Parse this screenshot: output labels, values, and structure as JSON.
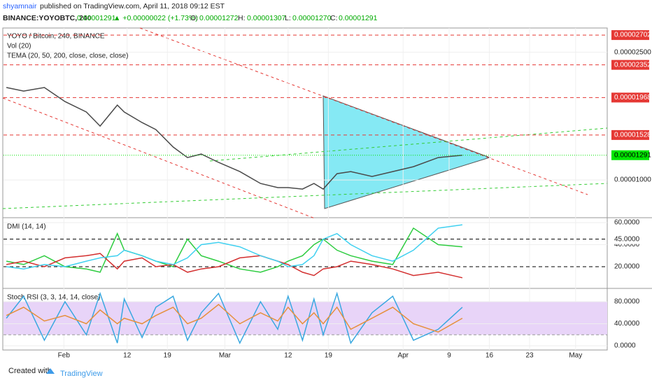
{
  "header": {
    "author": "shyamnair",
    "published": "published on TradingView.com, April 11, 2018 09:12 EST",
    "symbol": "BINANCE:YOYOBTC, 240",
    "price": "0.00001291",
    "change": "▲ +0.00000022 (+1.73%)",
    "open_label": "O:",
    "open": "0.00001272",
    "high_label": "H:",
    "high": "0.00001307",
    "low_label": "L:",
    "low": "0.00001270",
    "close_label": "C:",
    "close": "0.00001291"
  },
  "footer": {
    "created": "Created with",
    "brand": "TradingView"
  },
  "chart_data": [
    {
      "type": "line",
      "title": "YOYO / Bitcoin, 240, BINANCE",
      "legend": [
        "Vol (20)",
        "TEMA (20, 50, 200, close, close, close)"
      ],
      "x": [
        22,
        25,
        28.6,
        32.2,
        35.9,
        38.3,
        41.3,
        42.5,
        45.6,
        48,
        51,
        53.5,
        55.9,
        58.9,
        62.6,
        66.2,
        69.2,
        71,
        73.5,
        75.5,
        77.1,
        79.5,
        81.9,
        85.6,
        89.2,
        92.8,
        97.1,
        101.3
      ],
      "xlim": [
        21.5,
        126.5
      ],
      "xticks": [
        {
          "value": 32,
          "label": "Feb"
        },
        {
          "value": 43,
          "label": "12"
        },
        {
          "value": 50,
          "label": "19"
        },
        {
          "value": 60,
          "label": "Mar"
        },
        {
          "value": 71,
          "label": "12"
        },
        {
          "value": 78,
          "label": "19"
        },
        {
          "value": 91,
          "label": "Apr"
        },
        {
          "value": 99,
          "label": "9"
        },
        {
          "value": 106,
          "label": "16"
        },
        {
          "value": 113,
          "label": "23"
        },
        {
          "value": 121,
          "label": "May"
        }
      ],
      "values": [
        2.086e-05,
        2.044e-05,
        2.086e-05,
        1.921e-05,
        1.798e-05,
        1.633e-05,
        1.88e-05,
        1.798e-05,
        1.674e-05,
        1.592e-05,
        1.387e-05,
        1.263e-05,
        1.304e-05,
        1.206e-05,
        1.099e-05,
        9.59e-06,
        9.1e-06,
        9.1e-06,
        8.93e-06,
        9.59e-06,
        8.93e-06,
        1.074e-05,
        1.099e-05,
        1.041e-05,
        1.099e-05,
        1.156e-05,
        1.263e-05,
        1.291e-05
      ],
      "color": "#4a4a4a",
      "ylim": [
        5.65e-06,
        2.785e-05
      ],
      "yticks": [
        {
          "value": 1e-05,
          "label": "0.00001000"
        },
        {
          "value": 2.5e-05,
          "label": "0.00002500"
        }
      ],
      "levels": [
        2.702e-05,
        2.352e-05,
        1.968e-05,
        1.528e-05
      ],
      "level_color": "#e53935",
      "last": 1.291e-05,
      "last_color": "#00e600"
    },
    {
      "type": "line",
      "title": "DMI (14, 14)",
      "series": [
        {
          "color": "#2ecc40",
          "values": [
            25,
            22,
            30,
            20,
            18,
            15,
            50,
            35,
            30,
            25,
            20,
            45,
            30,
            25,
            18,
            15,
            20,
            25,
            30,
            40,
            45,
            35,
            30,
            25,
            22,
            55,
            40,
            38
          ]
        },
        {
          "color": "#d32f2f",
          "values": [
            22,
            25,
            20,
            28,
            30,
            32,
            18,
            25,
            28,
            20,
            22,
            15,
            18,
            20,
            28,
            30,
            25,
            22,
            15,
            12,
            18,
            20,
            25,
            22,
            18,
            12,
            15,
            10
          ]
        },
        {
          "color": "#3fd0f0",
          "values": [
            20,
            18,
            22,
            20,
            25,
            28,
            30,
            35,
            30,
            25,
            22,
            28,
            40,
            42,
            38,
            30,
            25,
            20,
            22,
            30,
            45,
            50,
            40,
            30,
            25,
            35,
            55,
            58
          ]
        }
      ],
      "ylim": [
        1.6,
        63.8
      ],
      "yticks": [
        {
          "value": 60,
          "label": "60.0000"
        },
        {
          "value": 40,
          "label": "40.0000"
        }
      ],
      "levels": [
        {
          "value": 45,
          "label": "45.0000"
        },
        {
          "value": 20,
          "label": "20.0000"
        }
      ]
    },
    {
      "type": "line",
      "title": "Stoch RSI (3, 3, 14, 14, close)",
      "series": [
        {
          "color": "#3aa8e0",
          "values": [
            50,
            90,
            10,
            80,
            20,
            95,
            5,
            85,
            15,
            70,
            90,
            10,
            60,
            95,
            5,
            80,
            30,
            90,
            10,
            85,
            20,
            95,
            5,
            60,
            90,
            10,
            30,
            70
          ]
        },
        {
          "color": "#e6903c",
          "values": [
            55,
            70,
            45,
            55,
            40,
            65,
            40,
            50,
            40,
            55,
            70,
            40,
            50,
            75,
            40,
            60,
            45,
            70,
            40,
            60,
            40,
            70,
            30,
            50,
            70,
            40,
            25,
            50
          ]
        }
      ],
      "ylim": [
        -7.6,
        102.9
      ],
      "yticks": [
        {
          "value": 80,
          "label": "80.0000"
        },
        {
          "value": 40,
          "label": "40.0000"
        },
        {
          "value": 0,
          "label": "0.0000"
        }
      ],
      "band": [
        20,
        80
      ],
      "band_color": "#e8d4f8"
    }
  ]
}
